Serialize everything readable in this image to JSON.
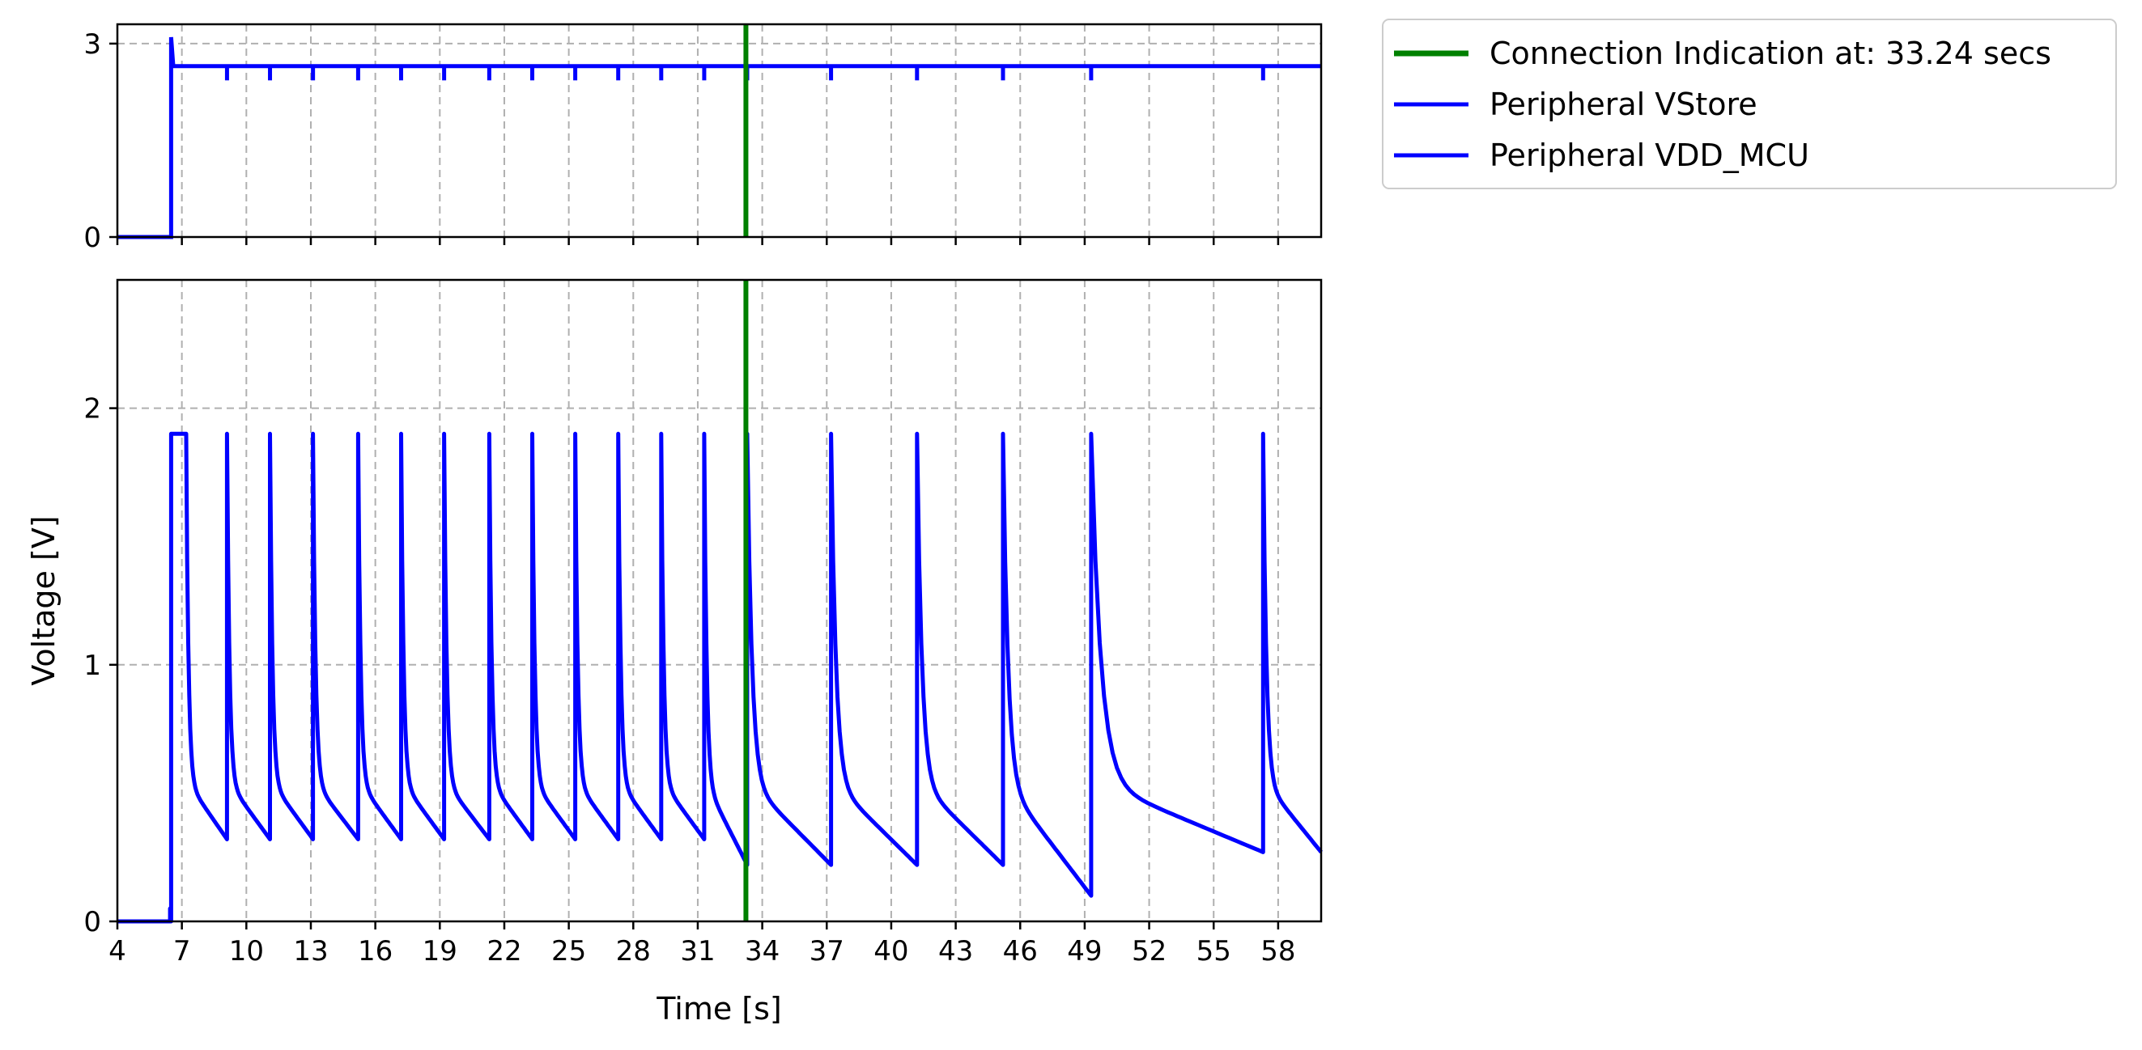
{
  "chart_data": [
    {
      "type": "line",
      "panel": "top",
      "ylim": [
        0,
        3.3
      ],
      "yticks": [
        0,
        3
      ],
      "xlim": [
        4,
        60
      ],
      "grid": true,
      "series": [
        {
          "name": "Peripheral VStore",
          "color": "#0000ff",
          "description": "steps from 0 to ~3.1 at ~6.5 s then holds ~2.6 V with small dips at each spike time",
          "rise_time": 6.5,
          "peak": 3.1,
          "level": 2.65,
          "dip_times": [
            9.1,
            11.1,
            13.1,
            15.2,
            17.2,
            19.2,
            21.3,
            23.3,
            25.3,
            27.3,
            29.3,
            31.3,
            33.3,
            37.2,
            41.2,
            45.2,
            49.3,
            57.3
          ]
        }
      ],
      "vline": {
        "x": 33.24,
        "color": "#008000"
      }
    },
    {
      "type": "line",
      "panel": "bottom",
      "ylim": [
        0,
        2.5
      ],
      "yticks": [
        0,
        1,
        2
      ],
      "xlim": [
        4,
        60
      ],
      "xticks": [
        4,
        7,
        10,
        13,
        16,
        19,
        22,
        25,
        28,
        31,
        34,
        37,
        40,
        43,
        46,
        49,
        52,
        55,
        58
      ],
      "xlabel": "Time [s]",
      "ylabel": "Voltage [V]",
      "grid": true,
      "series": [
        {
          "name": "Peripheral VDD_MCU",
          "color": "#0000ff",
          "start_time": 6.5,
          "start_block": [
            6.5,
            7.2
          ],
          "peak": 1.9,
          "spikes": [
            {
              "t": 9.1,
              "trough": 0.32
            },
            {
              "t": 11.1,
              "trough": 0.32
            },
            {
              "t": 13.1,
              "trough": 0.32
            },
            {
              "t": 15.2,
              "trough": 0.32
            },
            {
              "t": 17.2,
              "trough": 0.32
            },
            {
              "t": 19.2,
              "trough": 0.32
            },
            {
              "t": 21.3,
              "trough": 0.32
            },
            {
              "t": 23.3,
              "trough": 0.32
            },
            {
              "t": 25.3,
              "trough": 0.32
            },
            {
              "t": 27.3,
              "trough": 0.32
            },
            {
              "t": 29.3,
              "trough": 0.32
            },
            {
              "t": 31.3,
              "trough": 0.32
            },
            {
              "t": 33.3,
              "trough": 0.22
            },
            {
              "t": 37.2,
              "trough": 0.22
            },
            {
              "t": 41.2,
              "trough": 0.22
            },
            {
              "t": 45.2,
              "trough": 0.22
            },
            {
              "t": 49.3,
              "trough": 0.1
            },
            {
              "t": 57.3,
              "trough": 0.27
            }
          ]
        }
      ],
      "vline": {
        "x": 33.24,
        "color": "#008000"
      }
    }
  ],
  "legend": {
    "placement": "outside-top-right",
    "entries": [
      {
        "label": "Connection Indication at: 33.24 secs",
        "color": "#008000"
      },
      {
        "label": "Peripheral VStore",
        "color": "#0000ff"
      },
      {
        "label": "Peripheral VDD_MCU",
        "color": "#0000ff"
      }
    ]
  }
}
